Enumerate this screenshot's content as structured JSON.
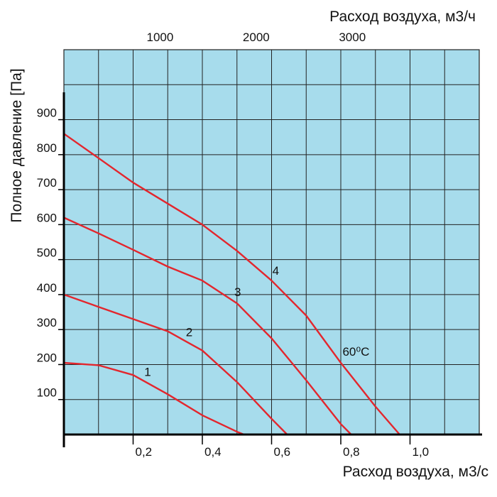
{
  "chart_data": {
    "type": "line",
    "xlabel_bottom": "Расход воздуха, м3/с",
    "xlabel_top": "Расход воздуха, м3/ч",
    "ylabel": "Полное давление [Па]",
    "xlim": [
      0,
      1.2
    ],
    "ylim": [
      0,
      1100
    ],
    "top_xlim": [
      0,
      4320
    ],
    "x_ticks": [
      {
        "value": 0.2,
        "label": "0,2"
      },
      {
        "value": 0.4,
        "label": "0,4"
      },
      {
        "value": 0.6,
        "label": "0,6"
      },
      {
        "value": 0.8,
        "label": "0,8"
      },
      {
        "value": 1.0,
        "label": "1,0"
      }
    ],
    "top_ticks": [
      {
        "value": 1000,
        "label": "1000"
      },
      {
        "value": 2000,
        "label": "2000"
      },
      {
        "value": 3000,
        "label": "3000"
      }
    ],
    "y_ticks": [
      {
        "value": 100,
        "label": "100"
      },
      {
        "value": 200,
        "label": "200"
      },
      {
        "value": 300,
        "label": "300"
      },
      {
        "value": 400,
        "label": "400"
      },
      {
        "value": 500,
        "label": "500"
      },
      {
        "value": 600,
        "label": "600"
      },
      {
        "value": 700,
        "label": "700"
      },
      {
        "value": 800,
        "label": "800"
      },
      {
        "value": 900,
        "label": "900"
      }
    ],
    "grid": true,
    "plot_background": "#a7dcec",
    "grid_color": "#222222",
    "series": [
      {
        "name": "1",
        "color": "#e3262d",
        "x": [
          0,
          0.1,
          0.2,
          0.3,
          0.4,
          0.5,
          0.52
        ],
        "y": [
          205,
          198,
          170,
          115,
          55,
          8,
          0
        ]
      },
      {
        "name": "2",
        "color": "#e3262d",
        "x": [
          0,
          0.1,
          0.2,
          0.3,
          0.4,
          0.5,
          0.6,
          0.645
        ],
        "y": [
          400,
          365,
          330,
          295,
          240,
          150,
          45,
          0
        ]
      },
      {
        "name": "3",
        "color": "#e3262d",
        "x": [
          0,
          0.1,
          0.2,
          0.3,
          0.4,
          0.5,
          0.6,
          0.7,
          0.8,
          0.83
        ],
        "y": [
          620,
          575,
          528,
          480,
          440,
          375,
          275,
          155,
          30,
          0
        ]
      },
      {
        "name": "4",
        "color": "#e3262d",
        "x": [
          0,
          0.1,
          0.2,
          0.3,
          0.4,
          0.5,
          0.6,
          0.7,
          0.8,
          0.9,
          0.97
        ],
        "y": [
          860,
          790,
          720,
          660,
          600,
          525,
          440,
          340,
          205,
          80,
          0
        ]
      }
    ],
    "annotations": [
      {
        "text": "60⁰С",
        "x": 0.805,
        "y": 225
      }
    ]
  }
}
